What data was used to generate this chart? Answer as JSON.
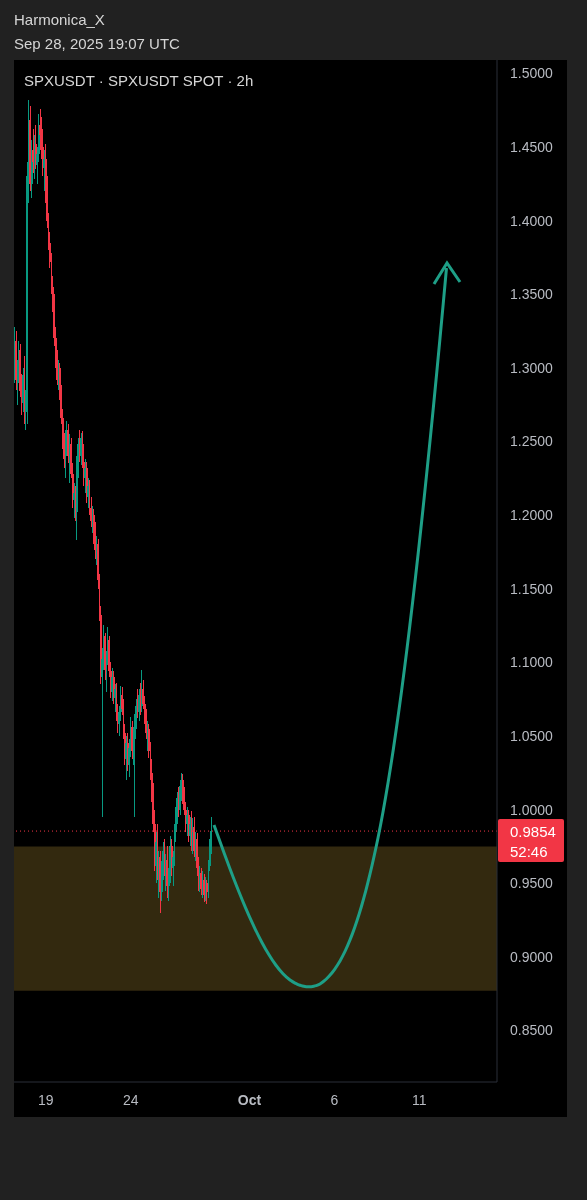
{
  "chart_data": {
    "type": "candlestick",
    "title": "SPXUSDT · SPXUSDT SPOT · 2h",
    "annotations": [
      "Harmonica_X",
      "Sep 28, 2025 19:07 UTC",
      "52:46"
    ],
    "x": [
      "2025-09-17T04:00",
      "2025-09-17T06:00",
      "2025-09-17T08:00",
      "2025-09-17T10:00",
      "2025-09-17T12:00",
      "2025-09-17T14:00",
      "2025-09-17T16:00",
      "2025-09-17T18:00",
      "2025-09-17T20:00",
      "2025-09-17T22:00",
      "2025-09-18T00:00",
      "2025-09-18T02:00",
      "2025-09-18T04:00",
      "2025-09-18T06:00",
      "2025-09-18T08:00",
      "2025-09-18T10:00",
      "2025-09-18T12:00",
      "2025-09-18T14:00",
      "2025-09-18T16:00",
      "2025-09-18T18:00",
      "2025-09-18T20:00",
      "2025-09-18T22:00",
      "2025-09-19T00:00",
      "2025-09-19T02:00",
      "2025-09-19T04:00",
      "2025-09-19T06:00",
      "2025-09-19T08:00",
      "2025-09-19T10:00",
      "2025-09-19T12:00",
      "2025-09-19T14:00",
      "2025-09-19T16:00",
      "2025-09-19T18:00",
      "2025-09-19T20:00",
      "2025-09-19T22:00",
      "2025-09-20T00:00",
      "2025-09-20T02:00",
      "2025-09-20T04:00",
      "2025-09-20T06:00",
      "2025-09-20T08:00",
      "2025-09-20T10:00",
      "2025-09-20T12:00",
      "2025-09-20T14:00",
      "2025-09-20T16:00",
      "2025-09-20T18:00",
      "2025-09-20T20:00",
      "2025-09-20T22:00",
      "2025-09-21T00:00",
      "2025-09-21T02:00",
      "2025-09-21T04:00",
      "2025-09-21T06:00",
      "2025-09-21T08:00",
      "2025-09-21T10:00",
      "2025-09-21T12:00",
      "2025-09-21T14:00",
      "2025-09-21T16:00",
      "2025-09-21T18:00",
      "2025-09-21T20:00",
      "2025-09-21T22:00",
      "2025-09-22T00:00",
      "2025-09-22T02:00",
      "2025-09-22T04:00",
      "2025-09-22T06:00",
      "2025-09-22T08:00",
      "2025-09-22T10:00",
      "2025-09-22T12:00",
      "2025-09-22T14:00",
      "2025-09-22T16:00",
      "2025-09-22T18:00",
      "2025-09-22T20:00",
      "2025-09-22T22:00",
      "2025-09-23T00:00",
      "2025-09-23T02:00",
      "2025-09-23T04:00",
      "2025-09-23T06:00",
      "2025-09-23T08:00",
      "2025-09-23T10:00",
      "2025-09-23T12:00",
      "2025-09-23T14:00",
      "2025-09-23T16:00",
      "2025-09-23T18:00",
      "2025-09-23T20:00",
      "2025-09-23T22:00",
      "2025-09-24T00:00",
      "2025-09-24T02:00",
      "2025-09-24T04:00",
      "2025-09-24T06:00",
      "2025-09-24T08:00",
      "2025-09-24T10:00",
      "2025-09-24T12:00",
      "2025-09-24T14:00",
      "2025-09-24T16:00",
      "2025-09-24T18:00",
      "2025-09-24T20:00",
      "2025-09-24T22:00",
      "2025-09-25T00:00",
      "2025-09-25T02:00",
      "2025-09-25T04:00",
      "2025-09-25T06:00",
      "2025-09-25T08:00",
      "2025-09-25T10:00",
      "2025-09-25T12:00",
      "2025-09-25T14:00",
      "2025-09-25T16:00",
      "2025-09-25T18:00",
      "2025-09-25T20:00",
      "2025-09-25T22:00",
      "2025-09-26T00:00",
      "2025-09-26T02:00",
      "2025-09-26T04:00",
      "2025-09-26T06:00",
      "2025-09-26T08:00",
      "2025-09-26T10:00",
      "2025-09-26T12:00",
      "2025-09-26T14:00",
      "2025-09-26T16:00",
      "2025-09-26T18:00",
      "2025-09-26T20:00",
      "2025-09-26T22:00",
      "2025-09-27T00:00",
      "2025-09-27T02:00",
      "2025-09-27T04:00",
      "2025-09-27T06:00",
      "2025-09-27T08:00",
      "2025-09-27T10:00",
      "2025-09-27T12:00",
      "2025-09-27T14:00",
      "2025-09-27T16:00",
      "2025-09-27T18:00",
      "2025-09-27T20:00",
      "2025-09-27T22:00",
      "2025-09-28T00:00",
      "2025-09-28T02:00",
      "2025-09-28T04:00",
      "2025-09-28T06:00",
      "2025-09-28T08:00",
      "2025-09-28T10:00",
      "2025-09-28T12:00",
      "2025-09-28T14:00",
      "2025-09-28T16:00",
      "2025-09-28T18:00"
    ],
    "ohlc": [
      [
        1.3,
        1.328,
        1.29,
        1.318
      ],
      [
        1.318,
        1.325,
        1.285,
        1.292
      ],
      [
        1.292,
        1.305,
        1.275,
        1.298
      ],
      [
        1.298,
        1.318,
        1.29,
        1.312
      ],
      [
        1.312,
        1.316,
        1.28,
        1.284
      ],
      [
        1.284,
        1.296,
        1.268,
        1.276
      ],
      [
        1.276,
        1.3,
        1.27,
        1.295
      ],
      [
        1.295,
        1.308,
        1.262,
        1.27
      ],
      [
        1.27,
        1.285,
        1.258,
        1.272
      ],
      [
        1.272,
        1.44,
        1.262,
        1.43
      ],
      [
        1.43,
        1.482,
        1.412,
        1.468
      ],
      [
        1.468,
        1.478,
        1.42,
        1.425
      ],
      [
        1.425,
        1.455,
        1.415,
        1.448
      ],
      [
        1.448,
        1.462,
        1.432,
        1.44
      ],
      [
        1.44,
        1.458,
        1.428,
        1.452
      ],
      [
        1.452,
        1.465,
        1.435,
        1.438
      ],
      [
        1.438,
        1.45,
        1.425,
        1.445
      ],
      [
        1.445,
        1.472,
        1.44,
        1.465
      ],
      [
        1.465,
        1.476,
        1.448,
        1.458
      ],
      [
        1.458,
        1.47,
        1.442,
        1.45
      ],
      [
        1.45,
        1.462,
        1.43,
        1.436
      ],
      [
        1.436,
        1.448,
        1.42,
        1.442
      ],
      [
        1.442,
        1.452,
        1.412,
        1.418
      ],
      [
        1.418,
        1.43,
        1.395,
        1.4
      ],
      [
        1.4,
        1.405,
        1.38,
        1.385
      ],
      [
        1.385,
        1.392,
        1.368,
        1.372
      ],
      [
        1.372,
        1.378,
        1.35,
        1.355
      ],
      [
        1.355,
        1.362,
        1.338,
        1.342
      ],
      [
        1.342,
        1.35,
        1.315,
        1.32
      ],
      [
        1.32,
        1.328,
        1.3,
        1.305
      ],
      [
        1.305,
        1.312,
        1.288,
        1.292
      ],
      [
        1.292,
        1.305,
        1.285,
        1.3
      ],
      [
        1.3,
        1.303,
        1.278,
        1.282
      ],
      [
        1.282,
        1.288,
        1.262,
        1.266
      ],
      [
        1.266,
        1.272,
        1.245,
        1.25
      ],
      [
        1.25,
        1.256,
        1.232,
        1.238
      ],
      [
        1.238,
        1.258,
        1.225,
        1.252
      ],
      [
        1.252,
        1.264,
        1.24,
        1.258
      ],
      [
        1.258,
        1.262,
        1.235,
        1.24
      ],
      [
        1.24,
        1.255,
        1.222,
        1.248
      ],
      [
        1.248,
        1.252,
        1.225,
        1.228
      ],
      [
        1.228,
        1.235,
        1.205,
        1.21
      ],
      [
        1.21,
        1.222,
        1.198,
        1.215
      ],
      [
        1.215,
        1.22,
        1.196,
        1.202
      ],
      [
        1.202,
        1.24,
        1.183,
        1.232
      ],
      [
        1.232,
        1.252,
        1.225,
        1.248
      ],
      [
        1.248,
        1.258,
        1.236,
        1.24
      ],
      [
        1.24,
        1.256,
        1.234,
        1.252
      ],
      [
        1.252,
        1.257,
        1.232,
        1.236
      ],
      [
        1.236,
        1.248,
        1.22,
        1.225
      ],
      [
        1.225,
        1.238,
        1.215,
        1.232
      ],
      [
        1.232,
        1.236,
        1.208,
        1.212
      ],
      [
        1.212,
        1.225,
        1.205,
        1.22
      ],
      [
        1.22,
        1.224,
        1.2,
        1.205
      ],
      [
        1.205,
        1.212,
        1.192,
        1.196
      ],
      [
        1.196,
        1.206,
        1.188,
        1.2
      ],
      [
        1.2,
        1.204,
        1.18,
        1.185
      ],
      [
        1.185,
        1.195,
        1.17,
        1.176
      ],
      [
        1.176,
        1.186,
        1.166,
        1.18
      ],
      [
        1.18,
        1.184,
        1.15,
        1.156
      ],
      [
        1.156,
        1.16,
        1.128,
        1.132
      ],
      [
        1.132,
        1.138,
        1.085,
        1.09
      ],
      [
        1.09,
        1.11,
        0.995,
        1.102
      ],
      [
        1.102,
        1.125,
        1.095,
        1.118
      ],
      [
        1.118,
        1.12,
        1.088,
        1.095
      ],
      [
        1.095,
        1.108,
        1.08,
        1.104
      ],
      [
        1.104,
        1.124,
        1.098,
        1.115
      ],
      [
        1.115,
        1.118,
        1.09,
        1.094
      ],
      [
        1.094,
        1.1,
        1.076,
        1.08
      ],
      [
        1.08,
        1.096,
        1.074,
        1.09
      ],
      [
        1.09,
        1.094,
        1.072,
        1.076
      ],
      [
        1.076,
        1.085,
        1.066,
        1.082
      ],
      [
        1.082,
        1.086,
        1.06,
        1.064
      ],
      [
        1.064,
        1.072,
        1.052,
        1.058
      ],
      [
        1.058,
        1.07,
        1.05,
        1.066
      ],
      [
        1.066,
        1.084,
        1.06,
        1.078
      ],
      [
        1.078,
        1.083,
        1.064,
        1.068
      ],
      [
        1.068,
        1.075,
        1.048,
        1.052
      ],
      [
        1.052,
        1.058,
        1.03,
        1.034
      ],
      [
        1.034,
        1.05,
        1.02,
        1.045
      ],
      [
        1.045,
        1.052,
        1.026,
        1.03
      ],
      [
        1.03,
        1.048,
        1.022,
        1.042
      ],
      [
        1.042,
        1.063,
        1.036,
        1.056
      ],
      [
        1.056,
        1.06,
        1.034,
        1.04
      ],
      [
        1.04,
        1.056,
        1.03,
        1.048
      ],
      [
        1.048,
        1.065,
        0.995,
        1.06
      ],
      [
        1.06,
        1.075,
        1.055,
        1.07
      ],
      [
        1.07,
        1.082,
        1.062,
        1.066
      ],
      [
        1.066,
        1.082,
        1.06,
        1.078
      ],
      [
        1.078,
        1.086,
        1.064,
        1.07
      ],
      [
        1.07,
        1.095,
        1.066,
        1.082
      ],
      [
        1.082,
        1.088,
        1.068,
        1.072
      ],
      [
        1.072,
        1.077,
        1.058,
        1.062
      ],
      [
        1.062,
        1.068,
        1.048,
        1.052
      ],
      [
        1.052,
        1.06,
        1.04,
        1.055
      ],
      [
        1.055,
        1.058,
        1.035,
        1.04
      ],
      [
        1.04,
        1.046,
        1.02,
        1.025
      ],
      [
        1.025,
        1.034,
        1.005,
        1.01
      ],
      [
        1.01,
        1.018,
        0.985,
        0.99
      ],
      [
        0.99,
        1.0,
        0.958,
        0.962
      ],
      [
        0.962,
        0.985,
        0.95,
        0.978
      ],
      [
        0.978,
        0.99,
        0.952,
        0.956
      ],
      [
        0.956,
        0.972,
        0.94,
        0.968
      ],
      [
        0.968,
        0.972,
        0.93,
        0.944
      ],
      [
        0.944,
        0.965,
        0.938,
        0.96
      ],
      [
        0.96,
        0.978,
        0.952,
        0.972
      ],
      [
        0.972,
        0.98,
        0.955,
        0.958
      ],
      [
        0.958,
        0.97,
        0.945,
        0.966
      ],
      [
        0.966,
        0.975,
        0.94,
        0.948
      ],
      [
        0.948,
        0.96,
        0.938,
        0.955
      ],
      [
        0.955,
        0.982,
        0.95,
        0.975
      ],
      [
        0.975,
        0.98,
        0.955,
        0.96
      ],
      [
        0.96,
        0.972,
        0.948,
        0.968
      ],
      [
        0.968,
        0.99,
        0.962,
        0.985
      ],
      [
        0.985,
        1.002,
        0.978,
        0.998
      ],
      [
        0.998,
        1.012,
        0.99,
        1.008
      ],
      [
        1.008,
        1.015,
        0.995,
        1.0
      ],
      [
        1.0,
        1.02,
        0.996,
        1.016
      ],
      [
        1.016,
        1.025,
        1.006,
        1.02
      ],
      [
        1.02,
        1.024,
        1.004,
        1.008
      ],
      [
        1.008,
        1.015,
        0.996,
        1.0
      ],
      [
        1.0,
        1.005,
        0.985,
        0.99
      ],
      [
        0.99,
        1.002,
        0.982,
        0.996
      ],
      [
        0.996,
        1.0,
        0.978,
        0.982
      ],
      [
        0.982,
        0.995,
        0.975,
        0.99
      ],
      [
        0.99,
        0.999,
        0.972,
        0.976
      ],
      [
        0.976,
        0.994,
        0.97,
        0.988
      ],
      [
        0.988,
        0.995,
        0.968,
        0.972
      ],
      [
        0.972,
        0.985,
        0.965,
        0.98
      ],
      [
        0.98,
        0.984,
        0.955,
        0.96
      ],
      [
        0.96,
        0.968,
        0.945,
        0.95
      ],
      [
        0.95,
        0.962,
        0.944,
        0.957
      ],
      [
        0.957,
        0.96,
        0.942,
        0.946
      ],
      [
        0.946,
        0.958,
        0.94,
        0.952
      ],
      [
        0.952,
        0.956,
        0.937,
        0.942
      ],
      [
        0.942,
        0.954,
        0.938,
        0.95
      ],
      [
        0.95,
        0.952,
        0.936,
        0.944
      ],
      [
        0.944,
        0.966,
        0.94,
        0.962
      ],
      [
        0.962,
        0.98,
        0.958,
        0.975
      ],
      [
        0.975,
        0.995,
        0.97,
        0.9854
      ]
    ],
    "colors": [
      "#089981",
      "#f23645",
      "#089981",
      "#089981",
      "#f23645",
      "#f23645",
      "#089981",
      "#f23645",
      "#089981",
      "#089981",
      "#089981",
      "#f23645",
      "#089981",
      "#f23645",
      "#089981",
      "#f23645",
      "#089981",
      "#089981",
      "#f23645",
      "#f23645",
      "#f23645",
      "#089981",
      "#f23645",
      "#f23645",
      "#f23645",
      "#f23645",
      "#f23645",
      "#f23645",
      "#f23645",
      "#f23645",
      "#f23645",
      "#089981",
      "#f23645",
      "#f23645",
      "#f23645",
      "#f23645",
      "#089981",
      "#089981",
      "#f23645",
      "#089981",
      "#f23645",
      "#f23645",
      "#089981",
      "#f23645",
      "#089981",
      "#089981",
      "#f23645",
      "#089981",
      "#f23645",
      "#f23645",
      "#089981",
      "#f23645",
      "#089981",
      "#f23645",
      "#f23645",
      "#089981",
      "#f23645",
      "#f23645",
      "#089981",
      "#f23645",
      "#f23645",
      "#f23645",
      "#089981",
      "#089981",
      "#f23645",
      "#089981",
      "#089981",
      "#f23645",
      "#f23645",
      "#089981",
      "#f23645",
      "#089981",
      "#f23645",
      "#f23645",
      "#089981",
      "#089981",
      "#f23645",
      "#f23645",
      "#f23645",
      "#089981",
      "#f23645",
      "#089981",
      "#089981",
      "#f23645",
      "#089981",
      "#089981",
      "#089981",
      "#f23645",
      "#089981",
      "#f23645",
      "#089981",
      "#f23645",
      "#f23645",
      "#f23645",
      "#089981",
      "#f23645",
      "#f23645",
      "#f23645",
      "#f23645",
      "#f23645",
      "#089981",
      "#f23645",
      "#089981",
      "#f23645",
      "#089981",
      "#089981",
      "#f23645",
      "#089981",
      "#f23645",
      "#089981",
      "#089981",
      "#f23645",
      "#089981",
      "#089981",
      "#089981",
      "#089981",
      "#f23645",
      "#089981",
      "#089981",
      "#f23645",
      "#f23645",
      "#f23645",
      "#089981",
      "#f23645",
      "#089981",
      "#f23645",
      "#089981",
      "#f23645",
      "#089981",
      "#f23645",
      "#f23645",
      "#089981",
      "#f23645",
      "#089981",
      "#f23645",
      "#089981",
      "#f23645",
      "#089981",
      "#089981",
      "#089981"
    ],
    "xlim": [
      "2025-09-17T03:00",
      "2025-10-15T14:00"
    ],
    "xticks": [
      {
        "value": "2025-09-19T00:00",
        "label": "19"
      },
      {
        "value": "2025-09-24T00:00",
        "label": "24"
      },
      {
        "value": "2025-10-01T00:00",
        "label": "Oct"
      },
      {
        "value": "2025-10-06T00:00",
        "label": "6"
      },
      {
        "value": "2025-10-11T00:00",
        "label": "11"
      }
    ],
    "ylim": [
      0.815,
      1.509
    ],
    "yticks": [
      {
        "value": 0.85,
        "label": "0.8500"
      },
      {
        "value": 0.9,
        "label": "0.9000"
      },
      {
        "value": 0.95,
        "label": "0.9500"
      },
      {
        "value": 1,
        "label": "1.0000"
      },
      {
        "value": 1.05,
        "label": "1.0500"
      },
      {
        "value": 1.1,
        "label": "1.1000"
      },
      {
        "value": 1.15,
        "label": "1.1500"
      },
      {
        "value": 1.2,
        "label": "1.2000"
      },
      {
        "value": 1.25,
        "label": "1.2500"
      },
      {
        "value": 1.3,
        "label": "1.3000"
      },
      {
        "value": 1.35,
        "label": "1.3500"
      },
      {
        "value": 1.4,
        "label": "1.4000"
      },
      {
        "value": 1.45,
        "label": "1.4500"
      },
      {
        "value": 1.5,
        "label": "1.5000"
      }
    ],
    "ref_lines": [
      {
        "axis": "y",
        "value": 0.9854,
        "label": "0.9854",
        "color": "#f23645",
        "line_style": "dotted"
      }
    ],
    "bands": [
      {
        "axis": "y",
        "from": 0.877,
        "to": 0.975,
        "color": "#33290f"
      }
    ]
  }
}
